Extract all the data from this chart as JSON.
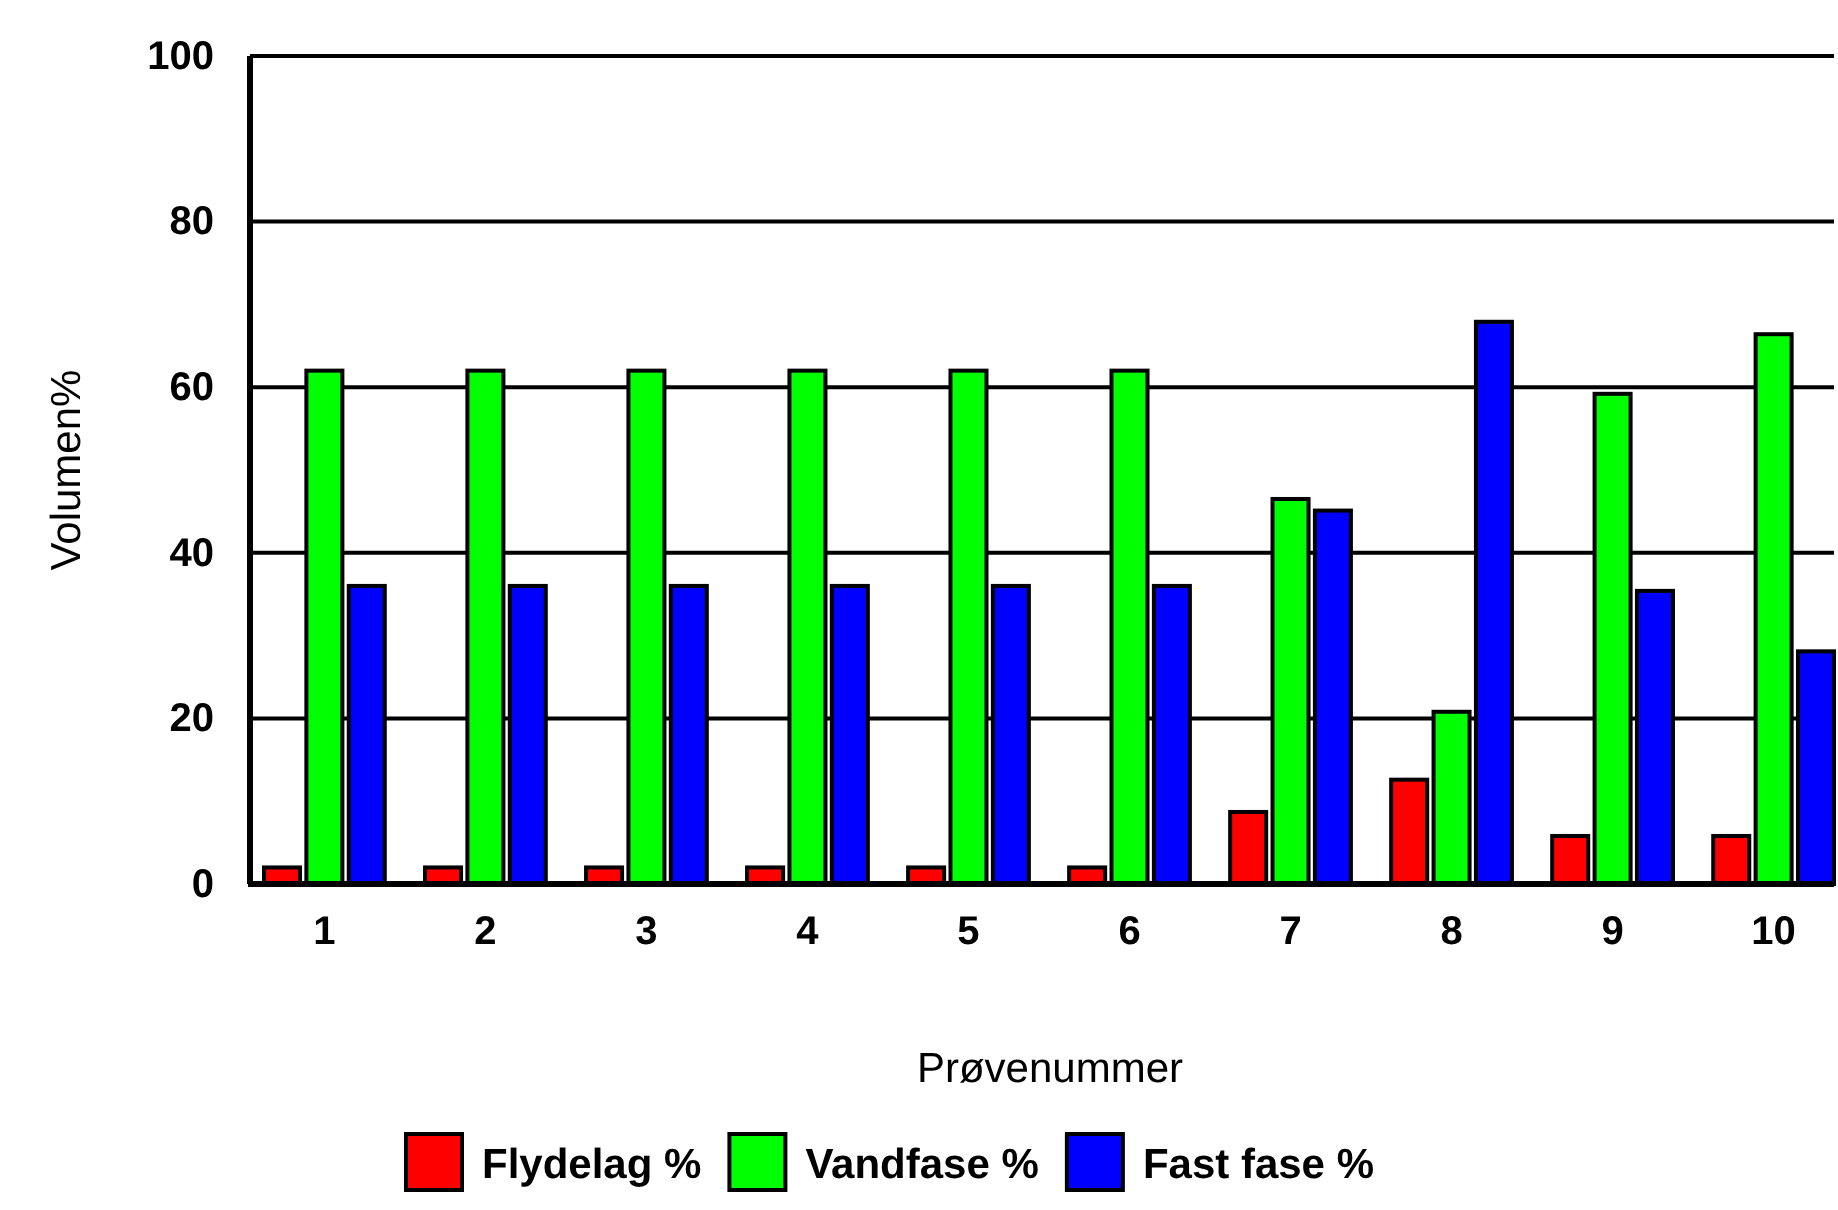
{
  "chart_data": {
    "type": "bar",
    "xlabel": "Prøvenummer",
    "ylabel": "Volumen%",
    "categories": [
      "1",
      "2",
      "3",
      "4",
      "5",
      "6",
      "7",
      "8",
      "9",
      "10"
    ],
    "series": [
      {
        "name": "Flydelag %",
        "color": "#ff0000",
        "values": [
          2,
          2,
          2,
          2,
          2,
          2,
          8.7,
          12.6,
          5.8,
          5.8
        ]
      },
      {
        "name": "Vandfase %",
        "color": "#00ff00",
        "values": [
          62,
          62,
          62,
          62,
          62,
          62,
          46.5,
          20.8,
          59.2,
          66.4
        ]
      },
      {
        "name": "Fast fase %",
        "color": "#0000ff",
        "values": [
          36,
          36,
          36,
          36,
          36,
          36,
          45.1,
          67.9,
          35.4,
          28.1
        ]
      }
    ],
    "ylim": [
      0,
      100
    ],
    "yticks": [
      0,
      20,
      40,
      60,
      80,
      100
    ],
    "grid": "y",
    "legend": "bottom"
  }
}
